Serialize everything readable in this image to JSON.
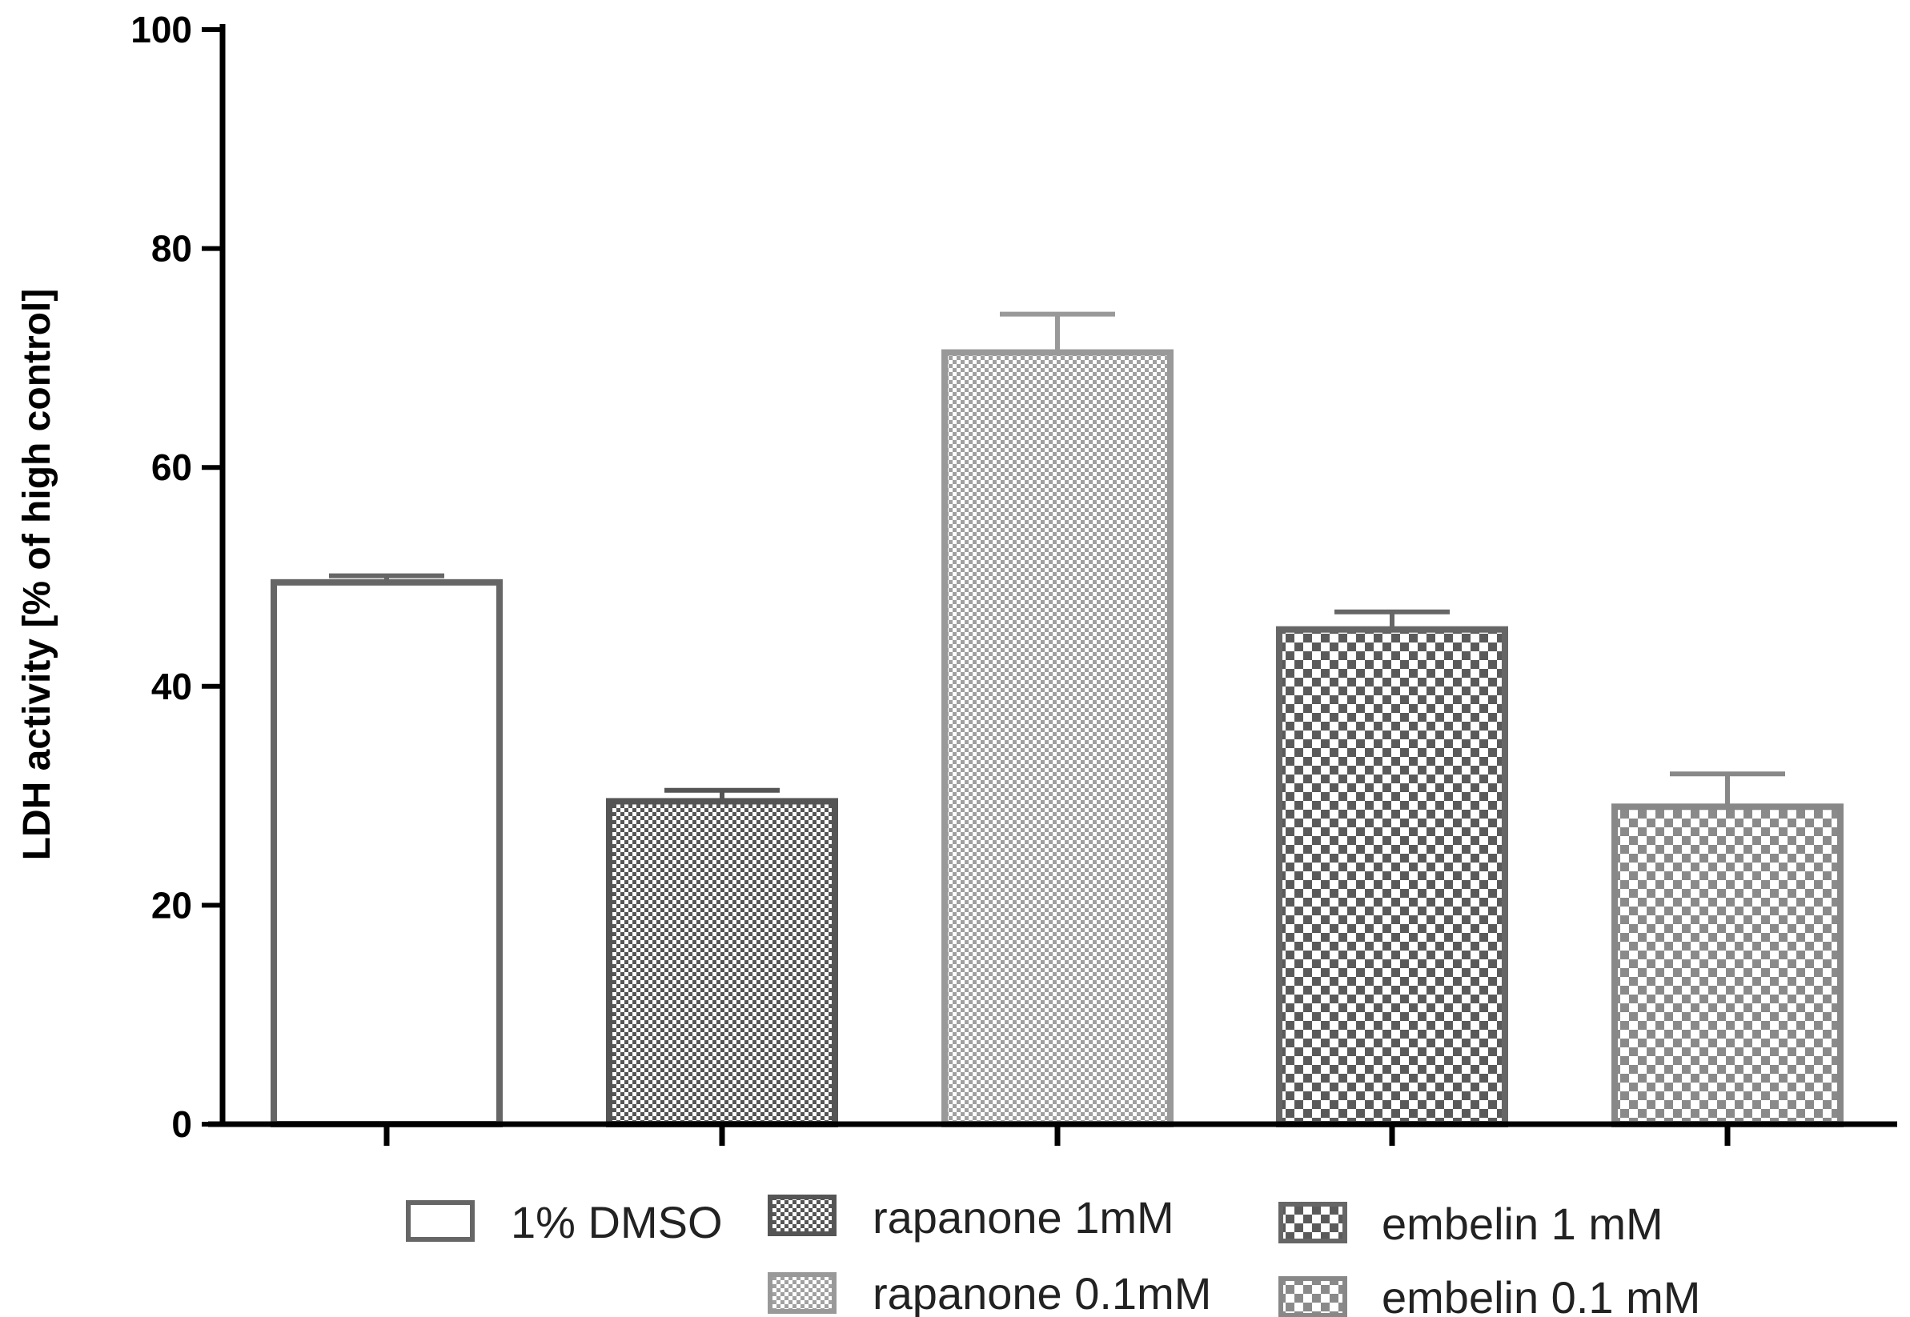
{
  "chart_data": {
    "type": "bar",
    "title": "",
    "xlabel": "",
    "ylabel": "LDH activity [% of high control]",
    "ylim": [
      0,
      100
    ],
    "yticks": [
      0,
      20,
      40,
      60,
      80,
      100
    ],
    "grid": false,
    "legend_position": "bottom",
    "categories": [
      "1% DMSO",
      "rapanone 1mM",
      "rapanone 0.1mM",
      "embelin 1 mM",
      "embelin 0.1 mM"
    ],
    "values": [
      49.5,
      29.5,
      70.5,
      45.2,
      29.0
    ],
    "errors": [
      0.6,
      1.0,
      3.5,
      1.6,
      3.0
    ],
    "series_styles": [
      {
        "pattern": "none",
        "edge": "#666666",
        "fill": "#ffffff",
        "alt": "#ffffff"
      },
      {
        "pattern": "fine-check",
        "edge": "#555555",
        "fill": "#ffffff",
        "alt": "#555555"
      },
      {
        "pattern": "fine-check",
        "edge": "#999999",
        "fill": "#ffffff",
        "alt": "#a0a0a0"
      },
      {
        "pattern": "coarse-check",
        "edge": "#666666",
        "fill": "#ffffff",
        "alt": "#5a5a5a"
      },
      {
        "pattern": "coarse-check",
        "edge": "#888888",
        "fill": "#ffffff",
        "alt": "#8a8a8a"
      }
    ]
  },
  "legend": {
    "items": [
      {
        "label": "1% DMSO"
      },
      {
        "label": "rapanone 1mM"
      },
      {
        "label": "rapanone 0.1mM"
      },
      {
        "label": "embelin 1 mM"
      },
      {
        "label": "embelin 0.1 mM"
      }
    ]
  }
}
